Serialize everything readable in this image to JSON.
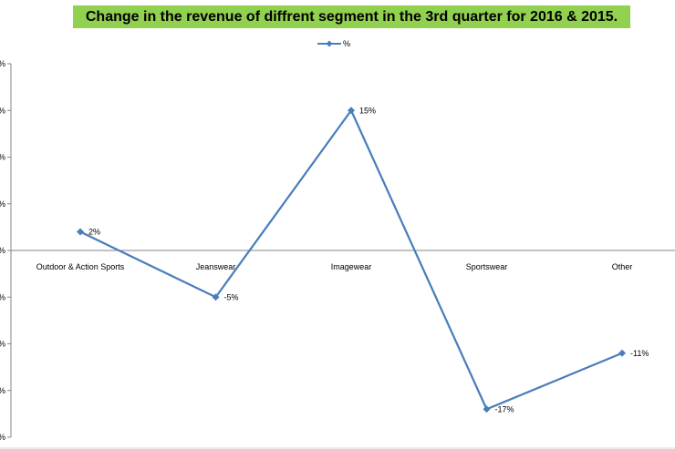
{
  "chart_data": {
    "type": "line",
    "title": "Change in the revenue of diffrent segment in the 3rd quarter for 2016 & 2015.",
    "categories": [
      "Outdoor & Action Sports",
      "Jeanswear",
      "Imagewear",
      "Sportswear",
      "Other"
    ],
    "series": [
      {
        "name": "%",
        "values": [
          2,
          -5,
          15,
          -17,
          -11
        ],
        "labels": [
          "2%",
          "-5%",
          "15%",
          "-17%",
          "-11%"
        ],
        "color": "#4a7ebb"
      }
    ],
    "ylim": [
      -20,
      20
    ],
    "ytick_step": 5,
    "grid": false,
    "legend": "top-center",
    "title_background": "#92d050"
  }
}
